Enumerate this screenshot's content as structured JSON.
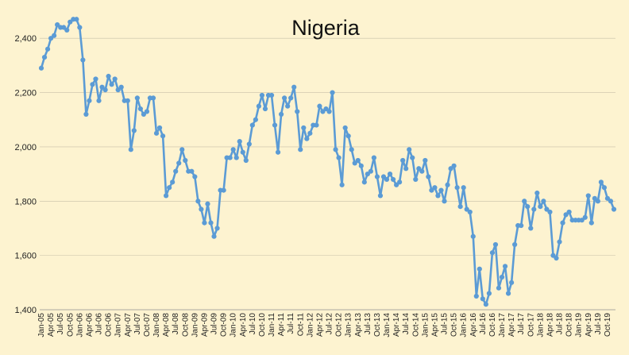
{
  "colors": {
    "background": "#fdf3d0",
    "line": "#5b9bd5",
    "grid": "#c8c0a8"
  },
  "chart_data": {
    "type": "line",
    "title": "Nigeria",
    "xlabel": "",
    "ylabel": "",
    "ylim": [
      1400,
      2500
    ],
    "yticks": [
      1400,
      1600,
      1800,
      2000,
      2200,
      2400
    ],
    "ytick_labels": [
      "1,400",
      "1,600",
      "1,800",
      "2,000",
      "2,200",
      "2,400"
    ],
    "grid": true,
    "legend": "none",
    "xtick_labels": [
      "Jan-05",
      "Apr-05",
      "Jul-05",
      "Oct-05",
      "Jan-06",
      "Apr-06",
      "Jul-06",
      "Oct-06",
      "Jan-07",
      "Apr-07",
      "Jul-07",
      "Oct-07",
      "Jan-08",
      "Apr-08",
      "Jul-08",
      "Oct-08",
      "Jan-09",
      "Apr-09",
      "Jul-09",
      "Oct-09",
      "Jan-10",
      "Apr-10",
      "Jul-10",
      "Oct-10",
      "Jan-11",
      "Apr-11",
      "Jul-11",
      "Oct-11",
      "Jan-12",
      "Apr-12",
      "Jul-12",
      "Oct-12",
      "Jan-13",
      "Apr-13",
      "Jul-13",
      "Oct-13",
      "Jan-14",
      "Apr-14",
      "Jul-14",
      "Oct-14",
      "Jan-15",
      "Apr-15",
      "Jul-15",
      "Oct-15",
      "Jan-16",
      "Apr-16",
      "Jul-16",
      "Oct-16",
      "Jan-17",
      "Apr-17",
      "Jul-17",
      "Oct-17",
      "Jan-18",
      "Apr-18",
      "Jul-18",
      "Oct-18",
      "Jan-19",
      "Apr-19",
      "Jul-19",
      "Oct-19"
    ],
    "series": [
      {
        "start": "Jan-05",
        "frequency": "monthly",
        "values": [
          2290,
          2330,
          2360,
          2400,
          2410,
          2450,
          2440,
          2440,
          2430,
          2460,
          2470,
          2470,
          2440,
          2320,
          2120,
          2170,
          2230,
          2250,
          2170,
          2220,
          2210,
          2260,
          2230,
          2250,
          2210,
          2220,
          2170,
          2170,
          1990,
          2060,
          2180,
          2140,
          2120,
          2130,
          2180,
          2180,
          2050,
          2070,
          2040,
          1820,
          1850,
          1870,
          1910,
          1940,
          1990,
          1950,
          1910,
          1910,
          1890,
          1800,
          1770,
          1720,
          1790,
          1720,
          1670,
          1700,
          1840,
          1840,
          1960,
          1960,
          1990,
          1960,
          2020,
          1980,
          1950,
          2010,
          2080,
          2100,
          2150,
          2190,
          2140,
          2190,
          2190,
          2080,
          1980,
          2120,
          2180,
          2150,
          2180,
          2220,
          2130,
          1990,
          2070,
          2030,
          2050,
          2080,
          2080,
          2150,
          2130,
          2140,
          2130,
          2200,
          1990,
          1960,
          1860,
          2070,
          2040,
          1990,
          1940,
          1950,
          1930,
          1870,
          1900,
          1910,
          1960,
          1890,
          1820,
          1890,
          1880,
          1900,
          1880,
          1860,
          1870,
          1950,
          1920,
          1990,
          1960,
          1880,
          1920,
          1910,
          1950,
          1890,
          1840,
          1850,
          1820,
          1840,
          1800,
          1860,
          1920,
          1930,
          1850,
          1780,
          1850,
          1770,
          1760,
          1670,
          1450,
          1550,
          1440,
          1420,
          1460,
          1610,
          1640,
          1480,
          1520,
          1560,
          1460,
          1500,
          1640,
          1710,
          1710,
          1800,
          1780,
          1700,
          1770,
          1830,
          1780,
          1800,
          1770,
          1760,
          1600,
          1590,
          1650,
          1720,
          1750,
          1760,
          1730,
          1730,
          1730,
          1730,
          1740,
          1820,
          1720,
          1810,
          1800,
          1870,
          1850,
          1810,
          1800,
          1770
        ]
      }
    ]
  }
}
